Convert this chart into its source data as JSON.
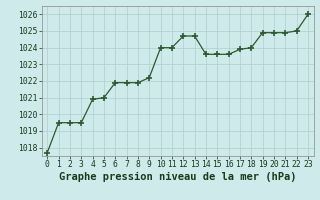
{
  "x": [
    0,
    1,
    2,
    3,
    4,
    5,
    6,
    7,
    8,
    9,
    10,
    11,
    12,
    13,
    14,
    15,
    16,
    17,
    18,
    19,
    20,
    21,
    22,
    23
  ],
  "y": [
    1017.7,
    1019.5,
    1019.5,
    1019.5,
    1020.9,
    1021.0,
    1021.9,
    1021.9,
    1021.9,
    1022.2,
    1024.0,
    1024.0,
    1024.7,
    1024.7,
    1023.6,
    1023.6,
    1023.6,
    1023.9,
    1024.0,
    1024.9,
    1024.9,
    1024.9,
    1025.0,
    1026.0
  ],
  "line_color": "#2d5a2d",
  "marker_color": "#2d5a2d",
  "bg_color": "#ceeaea",
  "grid_color": "#b0cece",
  "xlabel": "Graphe pression niveau de la mer (hPa)",
  "xlabel_color": "#1a3a1a",
  "ylim": [
    1017.5,
    1026.5
  ],
  "yticks": [
    1018,
    1019,
    1020,
    1021,
    1022,
    1023,
    1024,
    1025,
    1026
  ],
  "xticks": [
    0,
    1,
    2,
    3,
    4,
    5,
    6,
    7,
    8,
    9,
    10,
    11,
    12,
    13,
    14,
    15,
    16,
    17,
    18,
    19,
    20,
    21,
    22,
    23
  ],
  "tick_fontsize": 5.8,
  "xlabel_fontsize": 7.5
}
